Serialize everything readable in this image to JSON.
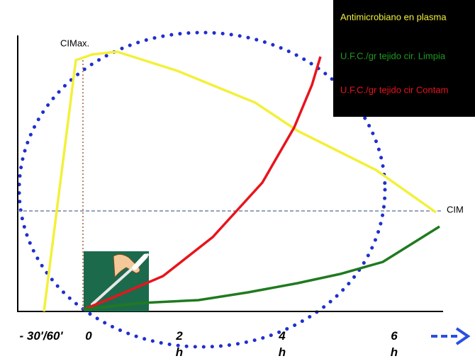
{
  "legend": [
    "Antimicrobiano en plasma",
    "U.F.C./gr tejido cir. Limpia",
    "U.F.C./gr tejido cir Contam"
  ],
  "annotations": {
    "peak": "CIMax.",
    "threshold": "CIM"
  },
  "x_labels": [
    "- 30'/60'",
    "0",
    "2",
    "4",
    "6"
  ],
  "x_units": [
    "h",
    "h",
    "h"
  ]
}
